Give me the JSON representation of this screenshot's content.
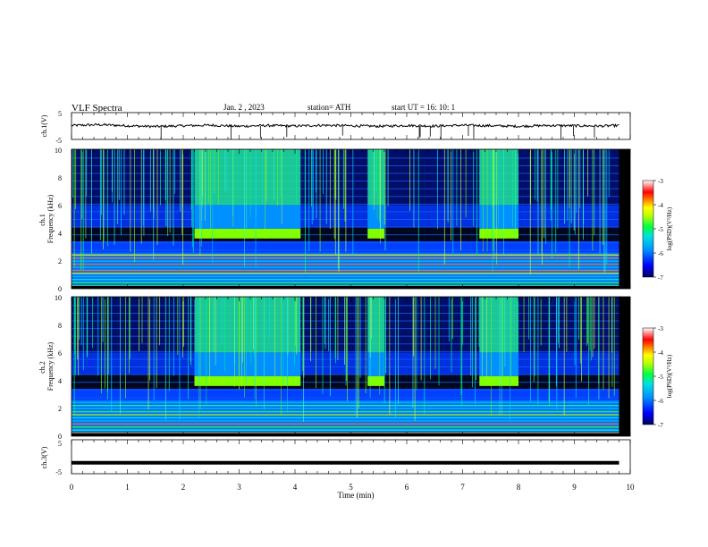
{
  "header": {
    "title": "VLF  Spectra",
    "date": "Jan.  2  , 2023",
    "station": "station= ATH",
    "start_ut": "start  UT  =    16: 10: 1"
  },
  "colorbar": {
    "label": "log(PSD)(V²/Hz)",
    "ticks": [
      "-3",
      "-4",
      "-5",
      "-6",
      "-7"
    ],
    "colors": [
      "#000080",
      "#0000ff",
      "#00a0ff",
      "#00ffc0",
      "#00ff00",
      "#c0ff00",
      "#ffff00",
      "#ff8000",
      "#ff0000",
      "#ffffff"
    ]
  },
  "chart_data": [
    {
      "type": "line",
      "ylabel": "ch.1(V)",
      "ylim": [
        -5,
        5
      ],
      "yticks": [
        "5",
        "-5"
      ],
      "xlim": [
        0,
        10
      ],
      "description_values": {
        "mean_level": 0,
        "fluctuation": 0.6
      },
      "series": [
        {
          "x": [
            0,
            0.5,
            1,
            1.5,
            2,
            2.5,
            3,
            3.5,
            4,
            4.5,
            5,
            5.5,
            6,
            6.5,
            7,
            7.5,
            8,
            8.5,
            9,
            9.5,
            9.8
          ],
          "values": [
            0.2,
            0.5,
            0.1,
            -0.2,
            0.1,
            0.3,
            -0.1,
            0.2,
            0.0,
            0.3,
            0.1,
            -0.1,
            0.2,
            0.0,
            0.3,
            0.1,
            -0.1,
            0.2,
            0.1,
            0.0,
            0.2
          ]
        }
      ]
    },
    {
      "type": "heatmap",
      "ylabel": "ch.1\nFrequency  (kHz)",
      "ylim": [
        0,
        10
      ],
      "yticks": [
        "0",
        "2",
        "4",
        "6",
        "8",
        "10"
      ],
      "xlim": [
        0,
        10
      ],
      "data_end_min": 9.8,
      "bursts_min": [
        [
          2.2,
          4.1
        ],
        [
          5.3,
          5.6
        ],
        [
          7.3,
          8.0
        ]
      ],
      "burst_band_khz": [
        3.6,
        4.3
      ],
      "low_band_khz": [
        0,
        2.6
      ]
    },
    {
      "type": "heatmap",
      "ylabel": "ch.2\nFrequency  (kHz)",
      "ylim": [
        0,
        10
      ],
      "yticks": [
        "0",
        "2",
        "4",
        "6",
        "8",
        "10"
      ],
      "xlim": [
        0,
        10
      ],
      "data_end_min": 9.8,
      "bursts_min": [
        [
          2.2,
          4.1
        ],
        [
          5.3,
          5.6
        ],
        [
          7.3,
          8.0
        ]
      ],
      "burst_band_khz": [
        3.6,
        4.3
      ],
      "low_band_khz": [
        0,
        2.6
      ]
    },
    {
      "type": "line",
      "ylabel": "ch.3(V)",
      "ylim": [
        -5,
        5
      ],
      "yticks": [
        "5",
        "-5"
      ],
      "xlim": [
        0,
        10
      ],
      "series": [
        {
          "x": [
            0,
            9.8
          ],
          "values": [
            -2.0,
            -2.0
          ]
        }
      ]
    }
  ],
  "xaxis": {
    "label": "Time  (min)",
    "ticks": [
      "0",
      "1",
      "2",
      "3",
      "4",
      "5",
      "6",
      "7",
      "8",
      "9",
      "10"
    ]
  }
}
